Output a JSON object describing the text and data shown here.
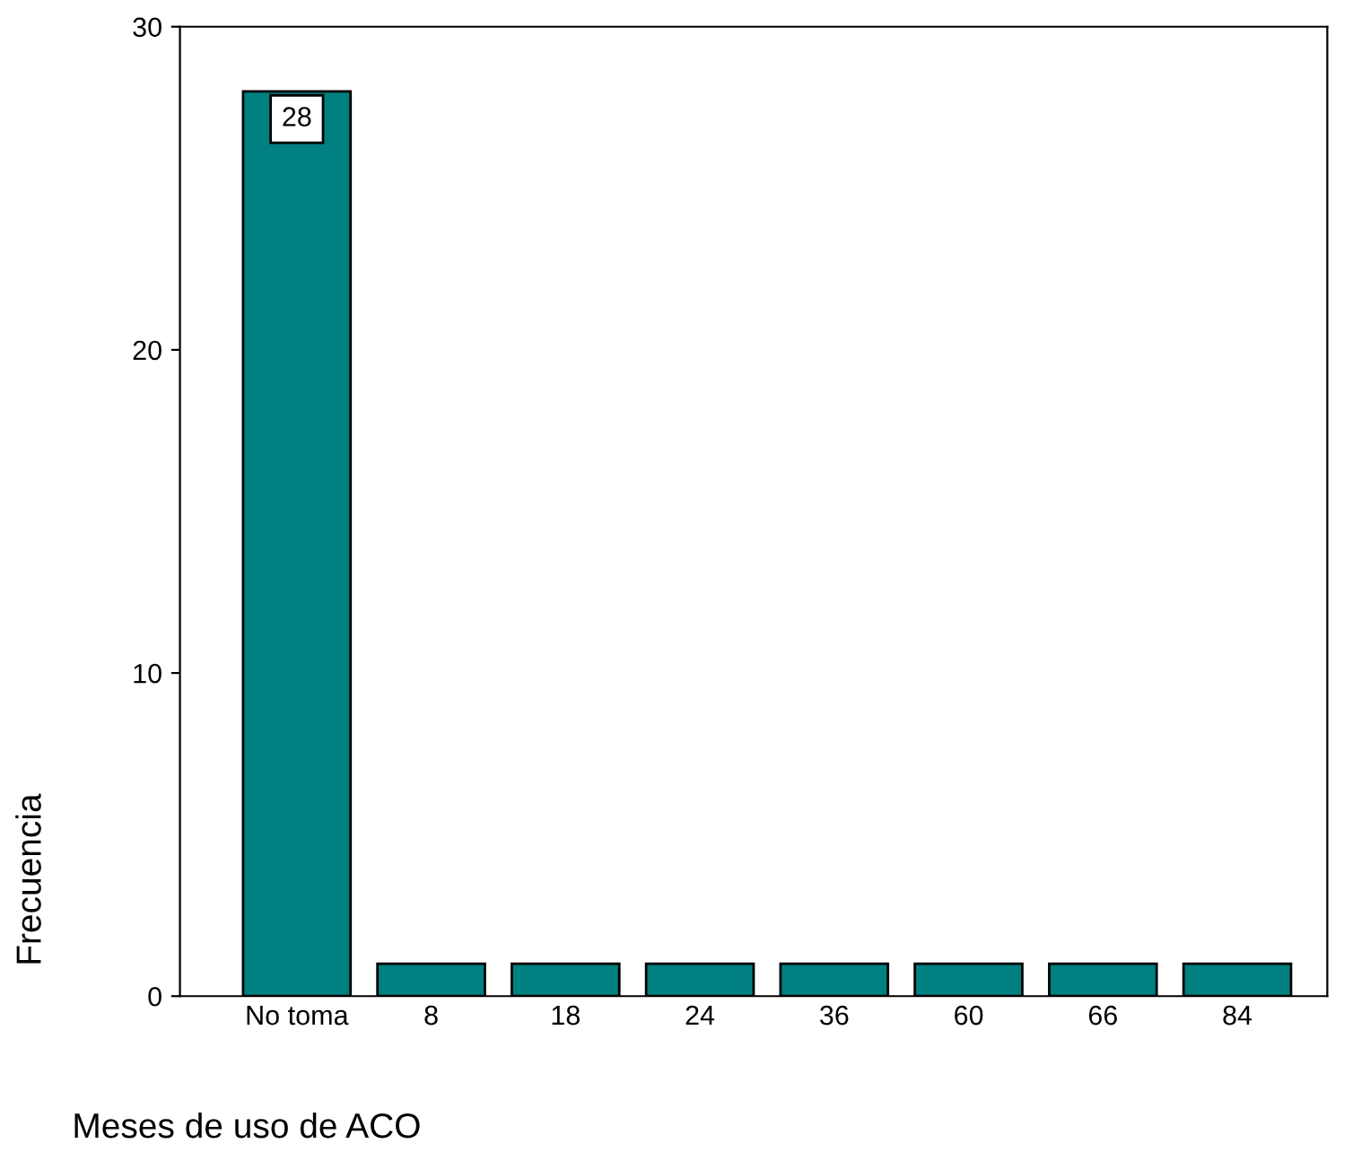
{
  "chart_data": {
    "type": "bar",
    "categories": [
      "No toma",
      "8",
      "18",
      "24",
      "36",
      "60",
      "66",
      "84"
    ],
    "values": [
      28,
      1,
      1,
      1,
      1,
      1,
      1,
      1
    ],
    "value_labels": [
      "28",
      null,
      null,
      null,
      null,
      null,
      null,
      null
    ],
    "color": "#008080",
    "xlabel": "Meses de uso de ACO",
    "ylabel": "Frecuencia",
    "ylim": [
      0,
      30
    ],
    "yticks": [
      0,
      10,
      20,
      30
    ],
    "grid": false,
    "legend": false
  }
}
